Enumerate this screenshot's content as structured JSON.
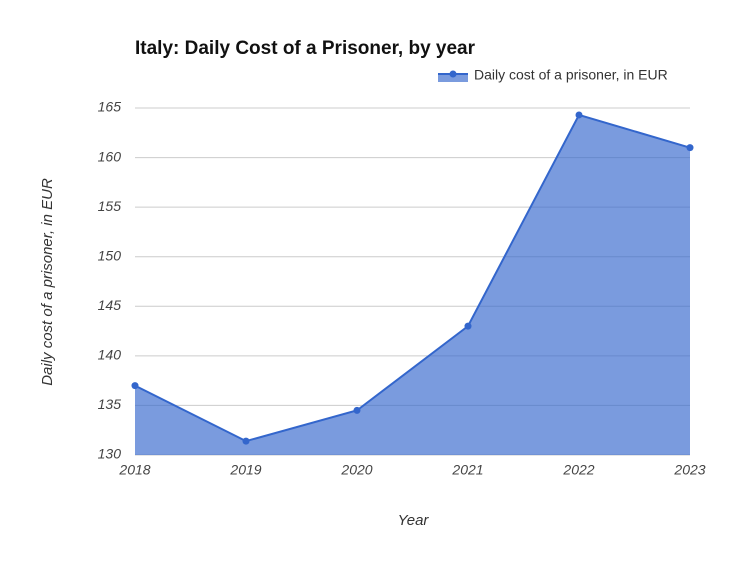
{
  "chart_data": {
    "type": "area",
    "title": "Italy: Daily Cost of a Prisoner, by year",
    "x_label": "Year",
    "y_label": "Daily cost of a prisoner, in EUR",
    "categories": [
      "2018",
      "2019",
      "2020",
      "2021",
      "2022",
      "2023"
    ],
    "series": [
      {
        "name": "Daily cost of a prisoner, in EUR",
        "color": "#3366cc",
        "values": [
          137.0,
          131.4,
          134.5,
          143.0,
          164.3,
          161.0
        ]
      }
    ],
    "ylim": [
      130,
      165
    ],
    "yticks": [
      130,
      135,
      140,
      145,
      150,
      155,
      160,
      165
    ],
    "grid": true,
    "legend": "top-right"
  }
}
